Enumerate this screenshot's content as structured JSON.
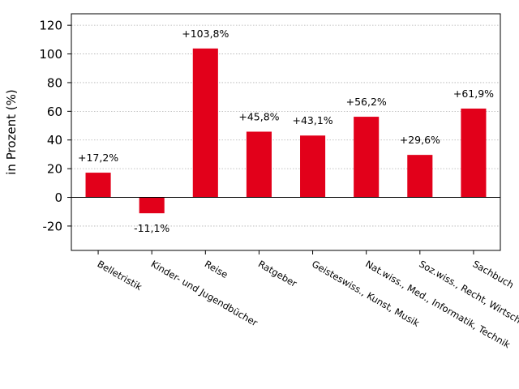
{
  "chart_data": {
    "type": "bar",
    "categories": [
      "Belletristik",
      "Kinder- und Jugendbücher",
      "Reise",
      "Ratgeber",
      "Geisteswiss., Kunst, Musik",
      "Nat.wiss., Med., Informatik, Technik",
      "Soz.wiss., Recht, Wirtsch.",
      "Sachbuch"
    ],
    "values": [
      17.2,
      -11.1,
      103.8,
      45.8,
      43.1,
      56.2,
      29.6,
      61.9
    ],
    "value_labels": [
      "+17,2%",
      "-11,1%",
      "+103,8%",
      "+45,8%",
      "+43,1%",
      "+56,2%",
      "+29,6%",
      "+61,9%"
    ],
    "title": "",
    "xlabel": "",
    "ylabel": "in Prozent (%)",
    "ylim": [
      -37,
      128
    ],
    "yticks": [
      -20,
      0,
      20,
      40,
      60,
      80,
      100,
      120
    ],
    "grid": "horizontal dotted",
    "bar_color": "#e2001a",
    "grid_color": "#b0b0b0"
  }
}
